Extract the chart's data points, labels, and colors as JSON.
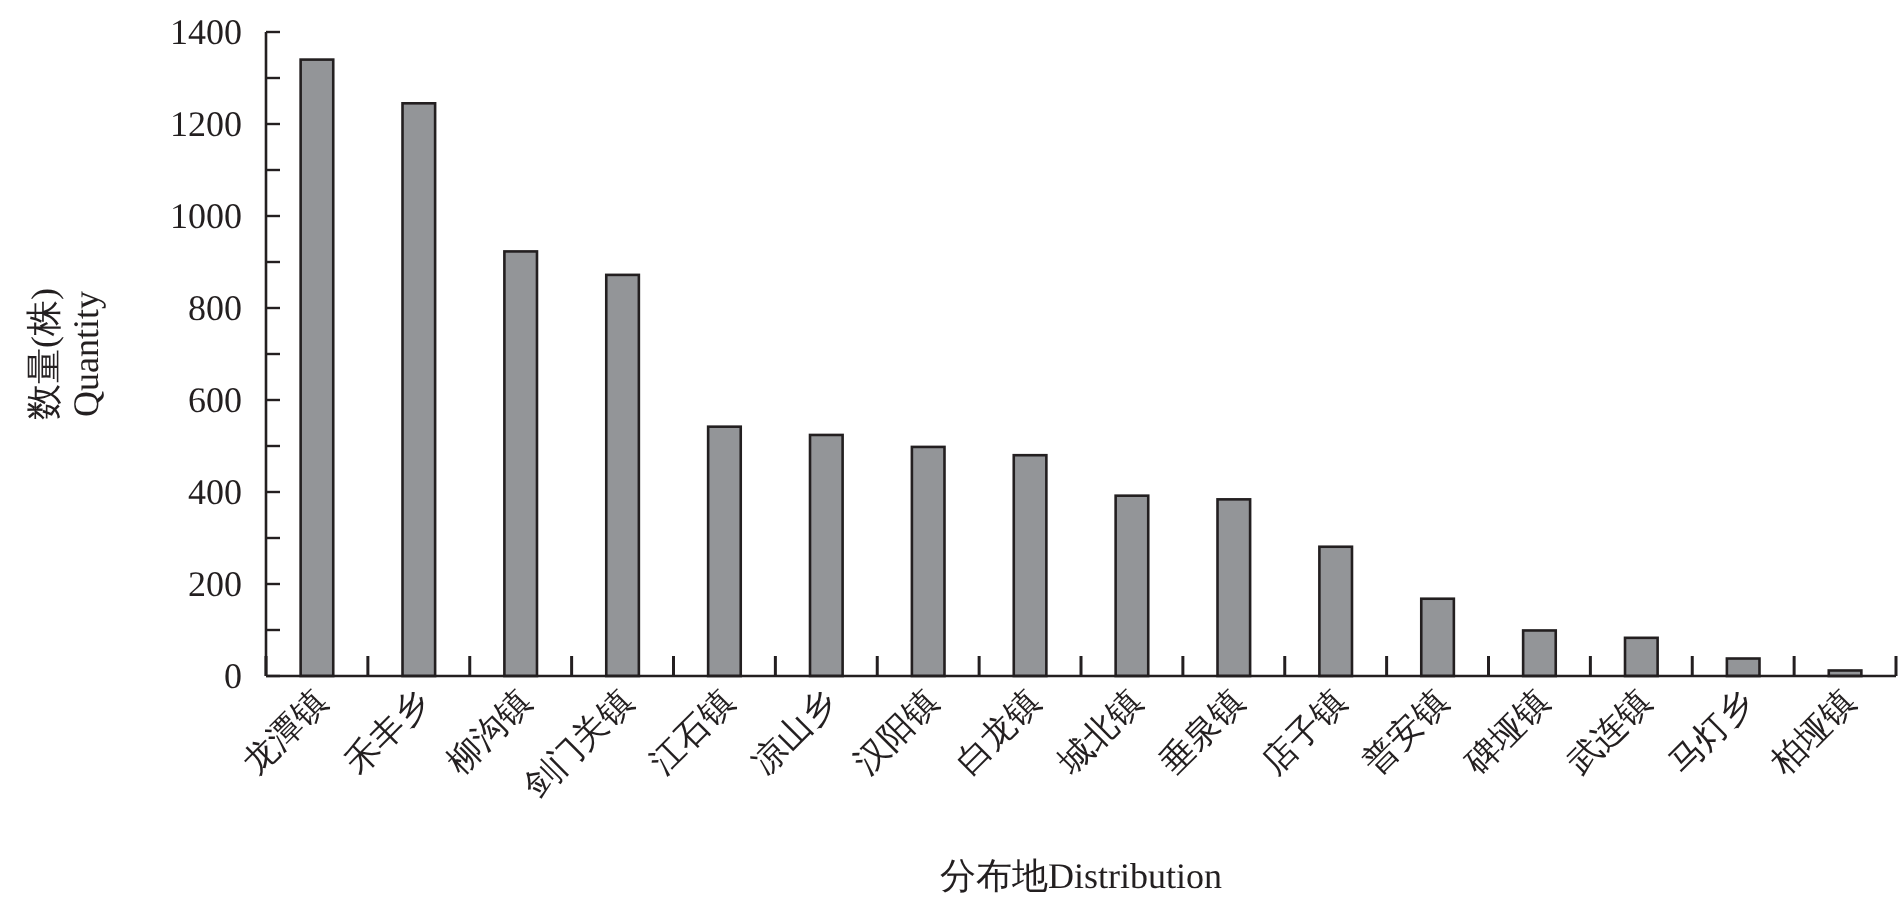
{
  "chart_data": {
    "type": "bar",
    "xlabel": "分布地Distribution",
    "ylabel": "数量(株)\nQuantity",
    "categories": [
      "龙潭镇",
      "禾丰乡",
      "柳沟镇",
      "剑门关镇",
      "江石镇",
      "凉山乡",
      "汉阳镇",
      "白龙镇",
      "城北镇",
      "垂泉镇",
      "店子镇",
      "普安镇",
      "碑垭镇",
      "武连镇",
      "马灯乡",
      "柏垭镇"
    ],
    "values": [
      1340,
      1245,
      923,
      872,
      542,
      524,
      498,
      480,
      392,
      384,
      281,
      168,
      99,
      83,
      38,
      12
    ],
    "color": "#939598",
    "ylim": [
      0,
      1400
    ],
    "yticks": [
      0,
      {
        "value": 100,
        "label": null
      },
      200,
      {
        "value": 300,
        "label": null
      },
      400,
      {
        "value": 500,
        "label": null
      },
      600,
      {
        "value": 700,
        "label": null
      },
      800,
      {
        "value": 900,
        "label": null
      },
      1000,
      {
        "value": 1100,
        "label": null
      },
      1200,
      {
        "value": 1300,
        "label": null
      },
      1400
    ],
    "grid": false
  }
}
